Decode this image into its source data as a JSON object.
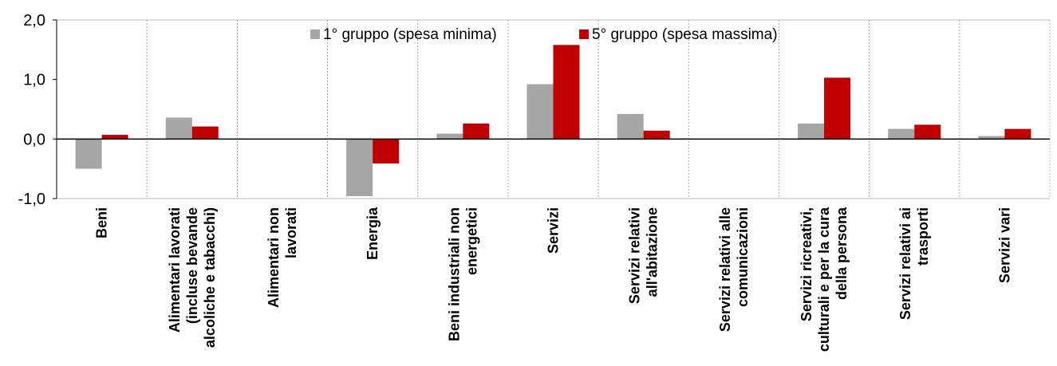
{
  "chart_data": {
    "type": "bar",
    "title": "",
    "xlabel": "",
    "ylabel": "",
    "ylim": [
      -1.0,
      2.0
    ],
    "yticks": [
      -1.0,
      0.0,
      1.0,
      2.0
    ],
    "ytick_labels": [
      "-1,0",
      "0,0",
      "1,0",
      "2,0"
    ],
    "grid": "vertical dashed separators between categories",
    "legend_position": "top-center",
    "categories": [
      [
        "Beni"
      ],
      [
        "Alimentari lavorati",
        "(incluse bevande",
        "alcoliche e tabacchi)"
      ],
      [
        "Alimentari non",
        "lavorati"
      ],
      [
        "Energia"
      ],
      [
        "Beni industriali non",
        "energetici"
      ],
      [
        "Servizi"
      ],
      [
        "Servizi relativi",
        "all'abitazione"
      ],
      [
        "Servizi relativi alle",
        "comunicazioni"
      ],
      [
        "Servizi ricreativi,",
        "culturali e per la cura",
        "della persona"
      ],
      [
        "Servizi relativi ai",
        "trasporti"
      ],
      [
        "Servizi vari"
      ]
    ],
    "series": [
      {
        "name": "1° gruppo (spesa minima)",
        "color": "#a6a6a6",
        "values": [
          -0.5,
          0.36,
          0.0,
          -0.96,
          0.09,
          0.92,
          0.42,
          0.0,
          0.26,
          0.17,
          0.05
        ]
      },
      {
        "name": "5° gruppo (spesa massima)",
        "color": "#c00000",
        "values": [
          0.07,
          0.21,
          0.0,
          -0.41,
          0.26,
          1.58,
          0.14,
          0.0,
          1.03,
          0.24,
          0.17
        ]
      }
    ]
  }
}
